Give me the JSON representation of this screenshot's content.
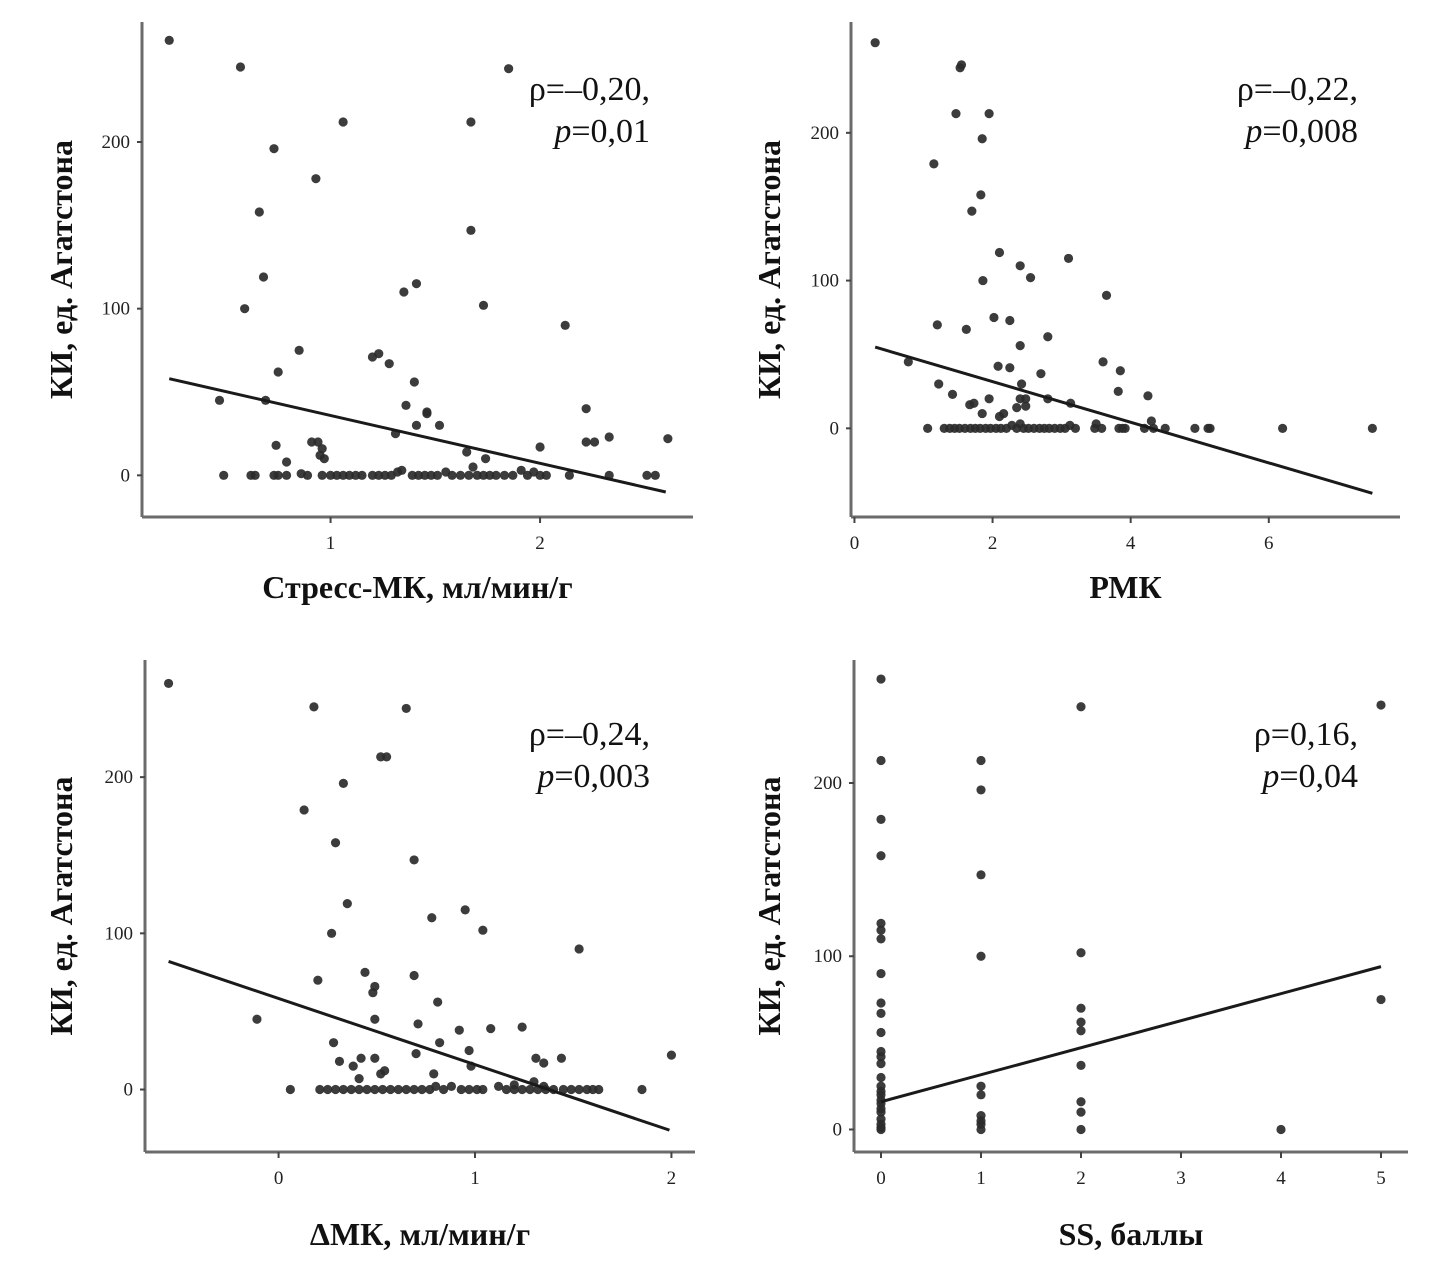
{
  "chart_data": [
    {
      "type": "scatter",
      "id": "stress",
      "title": "",
      "xlabel": "Стресс-МК, мл/мин/г",
      "ylabel": "КИ, ед. Агатстона",
      "xticks": [
        1,
        2
      ],
      "yticks": [
        0,
        100,
        200
      ],
      "xlim": [
        0.1,
        2.73
      ],
      "ylim": [
        -25,
        272
      ],
      "annotation": {
        "rho_label": "ρ=–0,20,",
        "p_prefix": "p",
        "p_value": "=0,01"
      },
      "fit_line": {
        "x": [
          0.23,
          2.6
        ],
        "y": [
          58,
          -10
        ]
      },
      "points": [
        [
          0.23,
          261
        ],
        [
          0.57,
          245
        ],
        [
          1.85,
          244
        ],
        [
          1.06,
          212
        ],
        [
          1.67,
          212
        ],
        [
          0.73,
          196
        ],
        [
          0.93,
          178
        ],
        [
          0.66,
          158
        ],
        [
          1.67,
          147
        ],
        [
          0.68,
          119
        ],
        [
          1.35,
          110
        ],
        [
          1.41,
          115
        ],
        [
          1.73,
          102
        ],
        [
          0.59,
          100
        ],
        [
          2.12,
          90
        ],
        [
          0.85,
          75
        ],
        [
          1.2,
          71
        ],
        [
          1.23,
          73
        ],
        [
          1.28,
          67
        ],
        [
          0.75,
          62
        ],
        [
          1.4,
          56
        ],
        [
          0.47,
          45
        ],
        [
          0.69,
          45
        ],
        [
          1.36,
          42
        ],
        [
          1.46,
          38
        ],
        [
          1.46,
          37
        ],
        [
          1.41,
          30
        ],
        [
          1.52,
          30
        ],
        [
          1.31,
          25
        ],
        [
          2.22,
          40
        ],
        [
          2.33,
          23
        ],
        [
          2.61,
          22
        ],
        [
          2.22,
          20
        ],
        [
          2.26,
          20
        ],
        [
          0.91,
          20
        ],
        [
          0.94,
          20
        ],
        [
          0.96,
          16
        ],
        [
          0.74,
          18
        ],
        [
          0.97,
          10
        ],
        [
          0.95,
          12
        ],
        [
          1.65,
          14
        ],
        [
          2.0,
          17
        ],
        [
          1.74,
          10
        ],
        [
          1.68,
          5
        ],
        [
          0.79,
          8
        ],
        [
          0.49,
          0
        ],
        [
          0.62,
          0
        ],
        [
          0.64,
          0
        ],
        [
          0.73,
          0
        ],
        [
          0.75,
          0
        ],
        [
          0.79,
          0
        ],
        [
          0.86,
          1
        ],
        [
          0.89,
          0
        ],
        [
          0.96,
          0
        ],
        [
          1.0,
          0
        ],
        [
          1.03,
          0
        ],
        [
          1.06,
          0
        ],
        [
          1.09,
          0
        ],
        [
          1.12,
          0
        ],
        [
          1.15,
          0
        ],
        [
          1.2,
          0
        ],
        [
          1.23,
          0
        ],
        [
          1.26,
          0
        ],
        [
          1.29,
          0
        ],
        [
          1.32,
          2
        ],
        [
          1.34,
          3
        ],
        [
          1.39,
          0
        ],
        [
          1.42,
          0
        ],
        [
          1.45,
          0
        ],
        [
          1.48,
          0
        ],
        [
          1.51,
          0
        ],
        [
          1.55,
          2
        ],
        [
          1.58,
          0
        ],
        [
          1.62,
          0
        ],
        [
          1.66,
          0
        ],
        [
          1.7,
          0
        ],
        [
          1.73,
          0
        ],
        [
          1.76,
          0
        ],
        [
          1.79,
          0
        ],
        [
          1.83,
          0
        ],
        [
          1.87,
          0
        ],
        [
          1.91,
          3
        ],
        [
          1.94,
          0
        ],
        [
          1.97,
          2
        ],
        [
          2.0,
          0
        ],
        [
          2.03,
          0
        ],
        [
          2.14,
          0
        ],
        [
          2.33,
          0
        ],
        [
          2.51,
          0
        ],
        [
          2.55,
          0
        ]
      ]
    },
    {
      "type": "scatter",
      "id": "rmk",
      "title": "",
      "xlabel": "РМК",
      "ylabel": "КИ, ед. Агатстона",
      "xticks": [
        0,
        2,
        4,
        6
      ],
      "yticks": [
        0,
        100,
        200
      ],
      "xlim": [
        -0.05,
        7.9
      ],
      "ylim": [
        -60,
        275
      ],
      "annotation": {
        "rho_label": "ρ=–0,22,",
        "p_prefix": "p",
        "p_value": "=0,008"
      },
      "fit_line": {
        "x": [
          0.3,
          7.5
        ],
        "y": [
          55,
          -44
        ]
      },
      "points": [
        [
          0.3,
          261
        ],
        [
          1.55,
          246
        ],
        [
          1.53,
          244
        ],
        [
          1.47,
          213
        ],
        [
          1.95,
          213
        ],
        [
          1.85,
          196
        ],
        [
          1.15,
          179
        ],
        [
          1.83,
          158
        ],
        [
          1.7,
          147
        ],
        [
          2.1,
          119
        ],
        [
          3.1,
          115
        ],
        [
          2.4,
          110
        ],
        [
          2.55,
          102
        ],
        [
          1.86,
          100
        ],
        [
          3.65,
          90
        ],
        [
          1.2,
          70
        ],
        [
          1.62,
          67
        ],
        [
          2.02,
          75
        ],
        [
          2.25,
          73
        ],
        [
          2.8,
          62
        ],
        [
          2.4,
          56
        ],
        [
          0.78,
          45
        ],
        [
          3.6,
          45
        ],
        [
          2.08,
          42
        ],
        [
          2.25,
          41
        ],
        [
          2.7,
          37
        ],
        [
          3.85,
          39
        ],
        [
          1.22,
          30
        ],
        [
          2.42,
          30
        ],
        [
          3.82,
          25
        ],
        [
          4.25,
          22
        ],
        [
          1.42,
          23
        ],
        [
          1.95,
          20
        ],
        [
          2.4,
          20
        ],
        [
          2.48,
          20
        ],
        [
          2.8,
          20
        ],
        [
          3.13,
          17
        ],
        [
          1.67,
          16
        ],
        [
          1.73,
          17
        ],
        [
          2.35,
          14
        ],
        [
          2.48,
          15
        ],
        [
          1.85,
          10
        ],
        [
          2.1,
          8
        ],
        [
          2.16,
          10
        ],
        [
          4.3,
          5
        ],
        [
          1.06,
          0
        ],
        [
          1.3,
          0
        ],
        [
          1.38,
          0
        ],
        [
          1.45,
          0
        ],
        [
          1.52,
          0
        ],
        [
          1.6,
          0
        ],
        [
          1.68,
          0
        ],
        [
          1.75,
          0
        ],
        [
          1.82,
          0
        ],
        [
          1.9,
          0
        ],
        [
          1.97,
          0
        ],
        [
          2.05,
          0
        ],
        [
          2.12,
          0
        ],
        [
          2.2,
          0
        ],
        [
          2.28,
          2
        ],
        [
          2.35,
          0
        ],
        [
          2.4,
          3
        ],
        [
          2.45,
          0
        ],
        [
          2.52,
          0
        ],
        [
          2.6,
          0
        ],
        [
          2.68,
          0
        ],
        [
          2.75,
          0
        ],
        [
          2.82,
          0
        ],
        [
          2.9,
          0
        ],
        [
          2.98,
          0
        ],
        [
          3.05,
          0
        ],
        [
          3.12,
          2
        ],
        [
          3.2,
          0
        ],
        [
          3.48,
          0
        ],
        [
          3.5,
          3
        ],
        [
          3.58,
          0
        ],
        [
          3.83,
          0
        ],
        [
          3.88,
          0
        ],
        [
          3.92,
          0
        ],
        [
          4.2,
          0
        ],
        [
          4.33,
          0
        ],
        [
          4.5,
          0
        ],
        [
          4.93,
          0
        ],
        [
          5.12,
          0
        ],
        [
          5.15,
          0
        ],
        [
          6.2,
          0
        ],
        [
          7.5,
          0
        ]
      ]
    },
    {
      "type": "scatter",
      "id": "delta",
      "title": "",
      "xlabel": "ΔМК, мл/мин/г",
      "ylabel": "КИ, ед. Агатстона",
      "xticks": [
        0,
        1,
        2
      ],
      "yticks": [
        0,
        100,
        200
      ],
      "xlim": [
        -0.68,
        2.12
      ],
      "ylim": [
        -40,
        275
      ],
      "annotation": {
        "rho_label": "ρ=–0,24,",
        "p_prefix": "p",
        "p_value": "=0,003"
      },
      "fit_line": {
        "x": [
          -0.56,
          1.99
        ],
        "y": [
          82,
          -26
        ]
      },
      "points": [
        [
          -0.56,
          260
        ],
        [
          0.18,
          245
        ],
        [
          0.65,
          244
        ],
        [
          0.52,
          213
        ],
        [
          0.55,
          213
        ],
        [
          0.33,
          196
        ],
        [
          0.13,
          179
        ],
        [
          0.29,
          158
        ],
        [
          0.69,
          147
        ],
        [
          0.35,
          119
        ],
        [
          0.95,
          115
        ],
        [
          0.78,
          110
        ],
        [
          1.04,
          102
        ],
        [
          0.27,
          100
        ],
        [
          1.53,
          90
        ],
        [
          0.44,
          75
        ],
        [
          0.2,
          70
        ],
        [
          0.49,
          66
        ],
        [
          0.69,
          73
        ],
        [
          0.48,
          62
        ],
        [
          0.81,
          56
        ],
        [
          -0.11,
          45
        ],
        [
          0.49,
          45
        ],
        [
          0.71,
          42
        ],
        [
          0.92,
          38
        ],
        [
          1.08,
          39
        ],
        [
          1.24,
          40
        ],
        [
          0.28,
          30
        ],
        [
          0.82,
          30
        ],
        [
          0.97,
          25
        ],
        [
          0.31,
          18
        ],
        [
          0.42,
          20
        ],
        [
          0.49,
          20
        ],
        [
          0.7,
          23
        ],
        [
          1.31,
          20
        ],
        [
          1.44,
          20
        ],
        [
          1.35,
          17
        ],
        [
          2.0,
          22
        ],
        [
          0.38,
          15
        ],
        [
          0.54,
          12
        ],
        [
          0.52,
          10
        ],
        [
          0.41,
          7
        ],
        [
          0.79,
          10
        ],
        [
          0.98,
          15
        ],
        [
          1.3,
          5
        ],
        [
          0.06,
          0
        ],
        [
          0.21,
          0
        ],
        [
          0.25,
          0
        ],
        [
          0.29,
          0
        ],
        [
          0.33,
          0
        ],
        [
          0.37,
          0
        ],
        [
          0.41,
          0
        ],
        [
          0.45,
          0
        ],
        [
          0.49,
          0
        ],
        [
          0.53,
          0
        ],
        [
          0.57,
          0
        ],
        [
          0.61,
          0
        ],
        [
          0.65,
          0
        ],
        [
          0.69,
          0
        ],
        [
          0.73,
          0
        ],
        [
          0.77,
          0
        ],
        [
          0.8,
          2
        ],
        [
          0.84,
          0
        ],
        [
          0.88,
          2
        ],
        [
          0.93,
          0
        ],
        [
          0.97,
          0
        ],
        [
          1.01,
          0
        ],
        [
          1.04,
          0
        ],
        [
          1.12,
          2
        ],
        [
          1.16,
          0
        ],
        [
          1.2,
          0
        ],
        [
          1.24,
          0
        ],
        [
          1.28,
          0
        ],
        [
          1.32,
          0
        ],
        [
          1.36,
          0
        ],
        [
          1.4,
          0
        ],
        [
          1.45,
          0
        ],
        [
          1.49,
          0
        ],
        [
          1.53,
          0
        ],
        [
          1.57,
          0
        ],
        [
          1.6,
          0
        ],
        [
          1.63,
          0
        ],
        [
          1.85,
          0
        ],
        [
          1.2,
          3
        ],
        [
          1.35,
          2
        ]
      ]
    },
    {
      "type": "scatter",
      "id": "ss",
      "title": "",
      "xlabel": "SS, баллы",
      "ylabel": "КИ, ед. Агатстона",
      "xticks": [
        0,
        1,
        2,
        3,
        4,
        5
      ],
      "yticks": [
        0,
        100,
        200
      ],
      "xlim": [
        -0.27,
        5.27
      ],
      "ylim": [
        -13,
        271
      ],
      "annotation": {
        "rho_label": "ρ=0,16,",
        "p_prefix": "p",
        "p_value": "=0,04"
      },
      "fit_line": {
        "x": [
          0,
          5
        ],
        "y": [
          16,
          94
        ]
      },
      "points": [
        [
          0,
          260
        ],
        [
          0,
          213
        ],
        [
          0,
          179
        ],
        [
          0,
          158
        ],
        [
          0,
          119
        ],
        [
          0,
          115
        ],
        [
          0,
          110
        ],
        [
          0,
          90
        ],
        [
          0,
          73
        ],
        [
          0,
          67
        ],
        [
          0,
          56
        ],
        [
          0,
          45
        ],
        [
          0,
          42
        ],
        [
          0,
          38
        ],
        [
          0,
          30
        ],
        [
          0,
          25
        ],
        [
          0,
          22
        ],
        [
          0,
          20
        ],
        [
          0,
          17
        ],
        [
          0,
          15
        ],
        [
          0,
          12
        ],
        [
          0,
          10
        ],
        [
          0,
          6
        ],
        [
          0,
          3
        ],
        [
          0,
          1
        ],
        [
          0,
          0
        ],
        [
          1,
          213
        ],
        [
          1,
          196
        ],
        [
          1,
          147
        ],
        [
          1,
          100
        ],
        [
          1,
          25
        ],
        [
          1,
          20
        ],
        [
          1,
          8
        ],
        [
          1,
          5
        ],
        [
          1,
          3
        ],
        [
          1,
          0
        ],
        [
          2,
          244
        ],
        [
          2,
          102
        ],
        [
          2,
          70
        ],
        [
          2,
          62
        ],
        [
          2,
          57
        ],
        [
          2,
          37
        ],
        [
          2,
          16
        ],
        [
          2,
          10
        ],
        [
          2,
          0
        ],
        [
          4,
          0
        ],
        [
          5,
          245
        ],
        [
          5,
          75
        ]
      ]
    }
  ]
}
